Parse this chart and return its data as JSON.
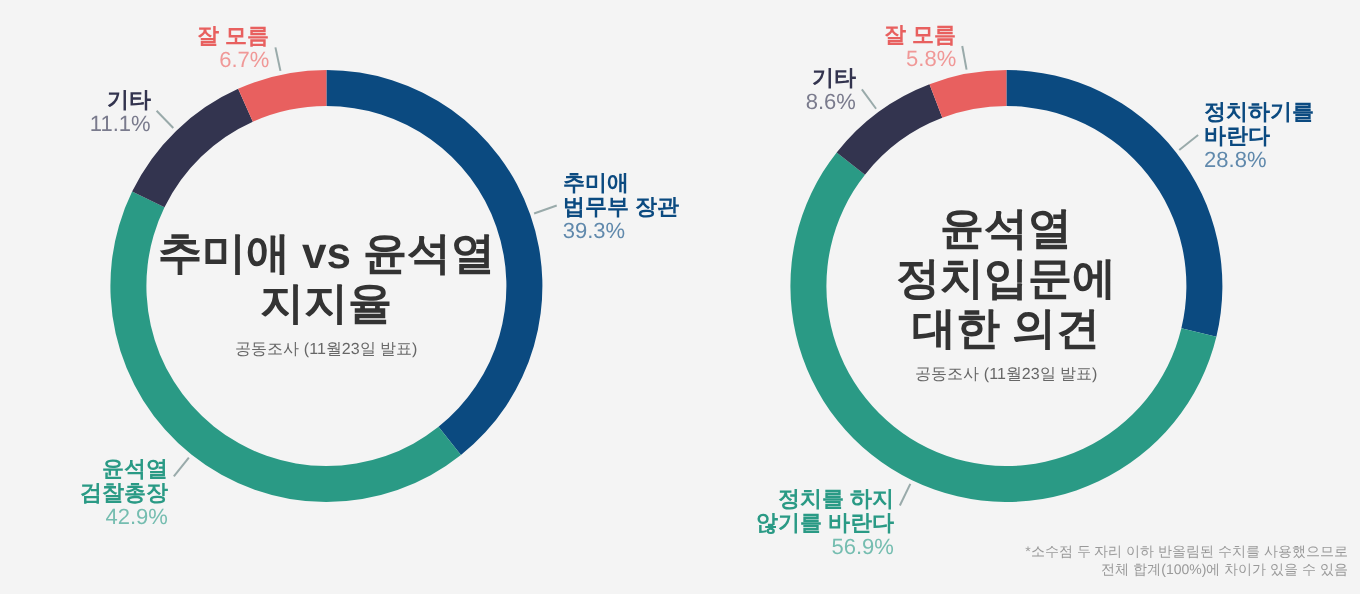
{
  "chart_data": [
    {
      "type": "donut",
      "title": "추미애 vs 윤석열\n지지율",
      "subtitle": "공동조사 (11월23일 발표)",
      "categories": [
        "추미애\n법무부 장관",
        "윤석열\n검찰총장",
        "기타",
        "잘 모름"
      ],
      "values": [
        39.3,
        42.9,
        11.1,
        6.7
      ],
      "value_labels": [
        "39.3%",
        "42.9%",
        "11.1%",
        "6.7%"
      ],
      "colors": [
        "#0b4a80",
        "#2a9a85",
        "#33344f",
        "#e8605f"
      ]
    },
    {
      "type": "donut",
      "title": "윤석열\n정치입문에\n대한 의견",
      "subtitle": "공동조사 (11월23일 발표)",
      "categories": [
        "정치하기를\n바란다",
        "정치를 하지\n않기를 바란다",
        "기타",
        "잘 모름"
      ],
      "values": [
        28.8,
        56.9,
        8.6,
        5.8
      ],
      "value_labels": [
        "28.8%",
        "56.9%",
        "8.6%",
        "5.8%"
      ],
      "colors": [
        "#0b4a80",
        "#2a9a85",
        "#33344f",
        "#e8605f"
      ],
      "annotations": [
        "*소수점 두 자리 이하 반올림된 수치를 사용했으므로\n전체 합계(100%)에 차이가 있을 수 있음"
      ]
    }
  ]
}
